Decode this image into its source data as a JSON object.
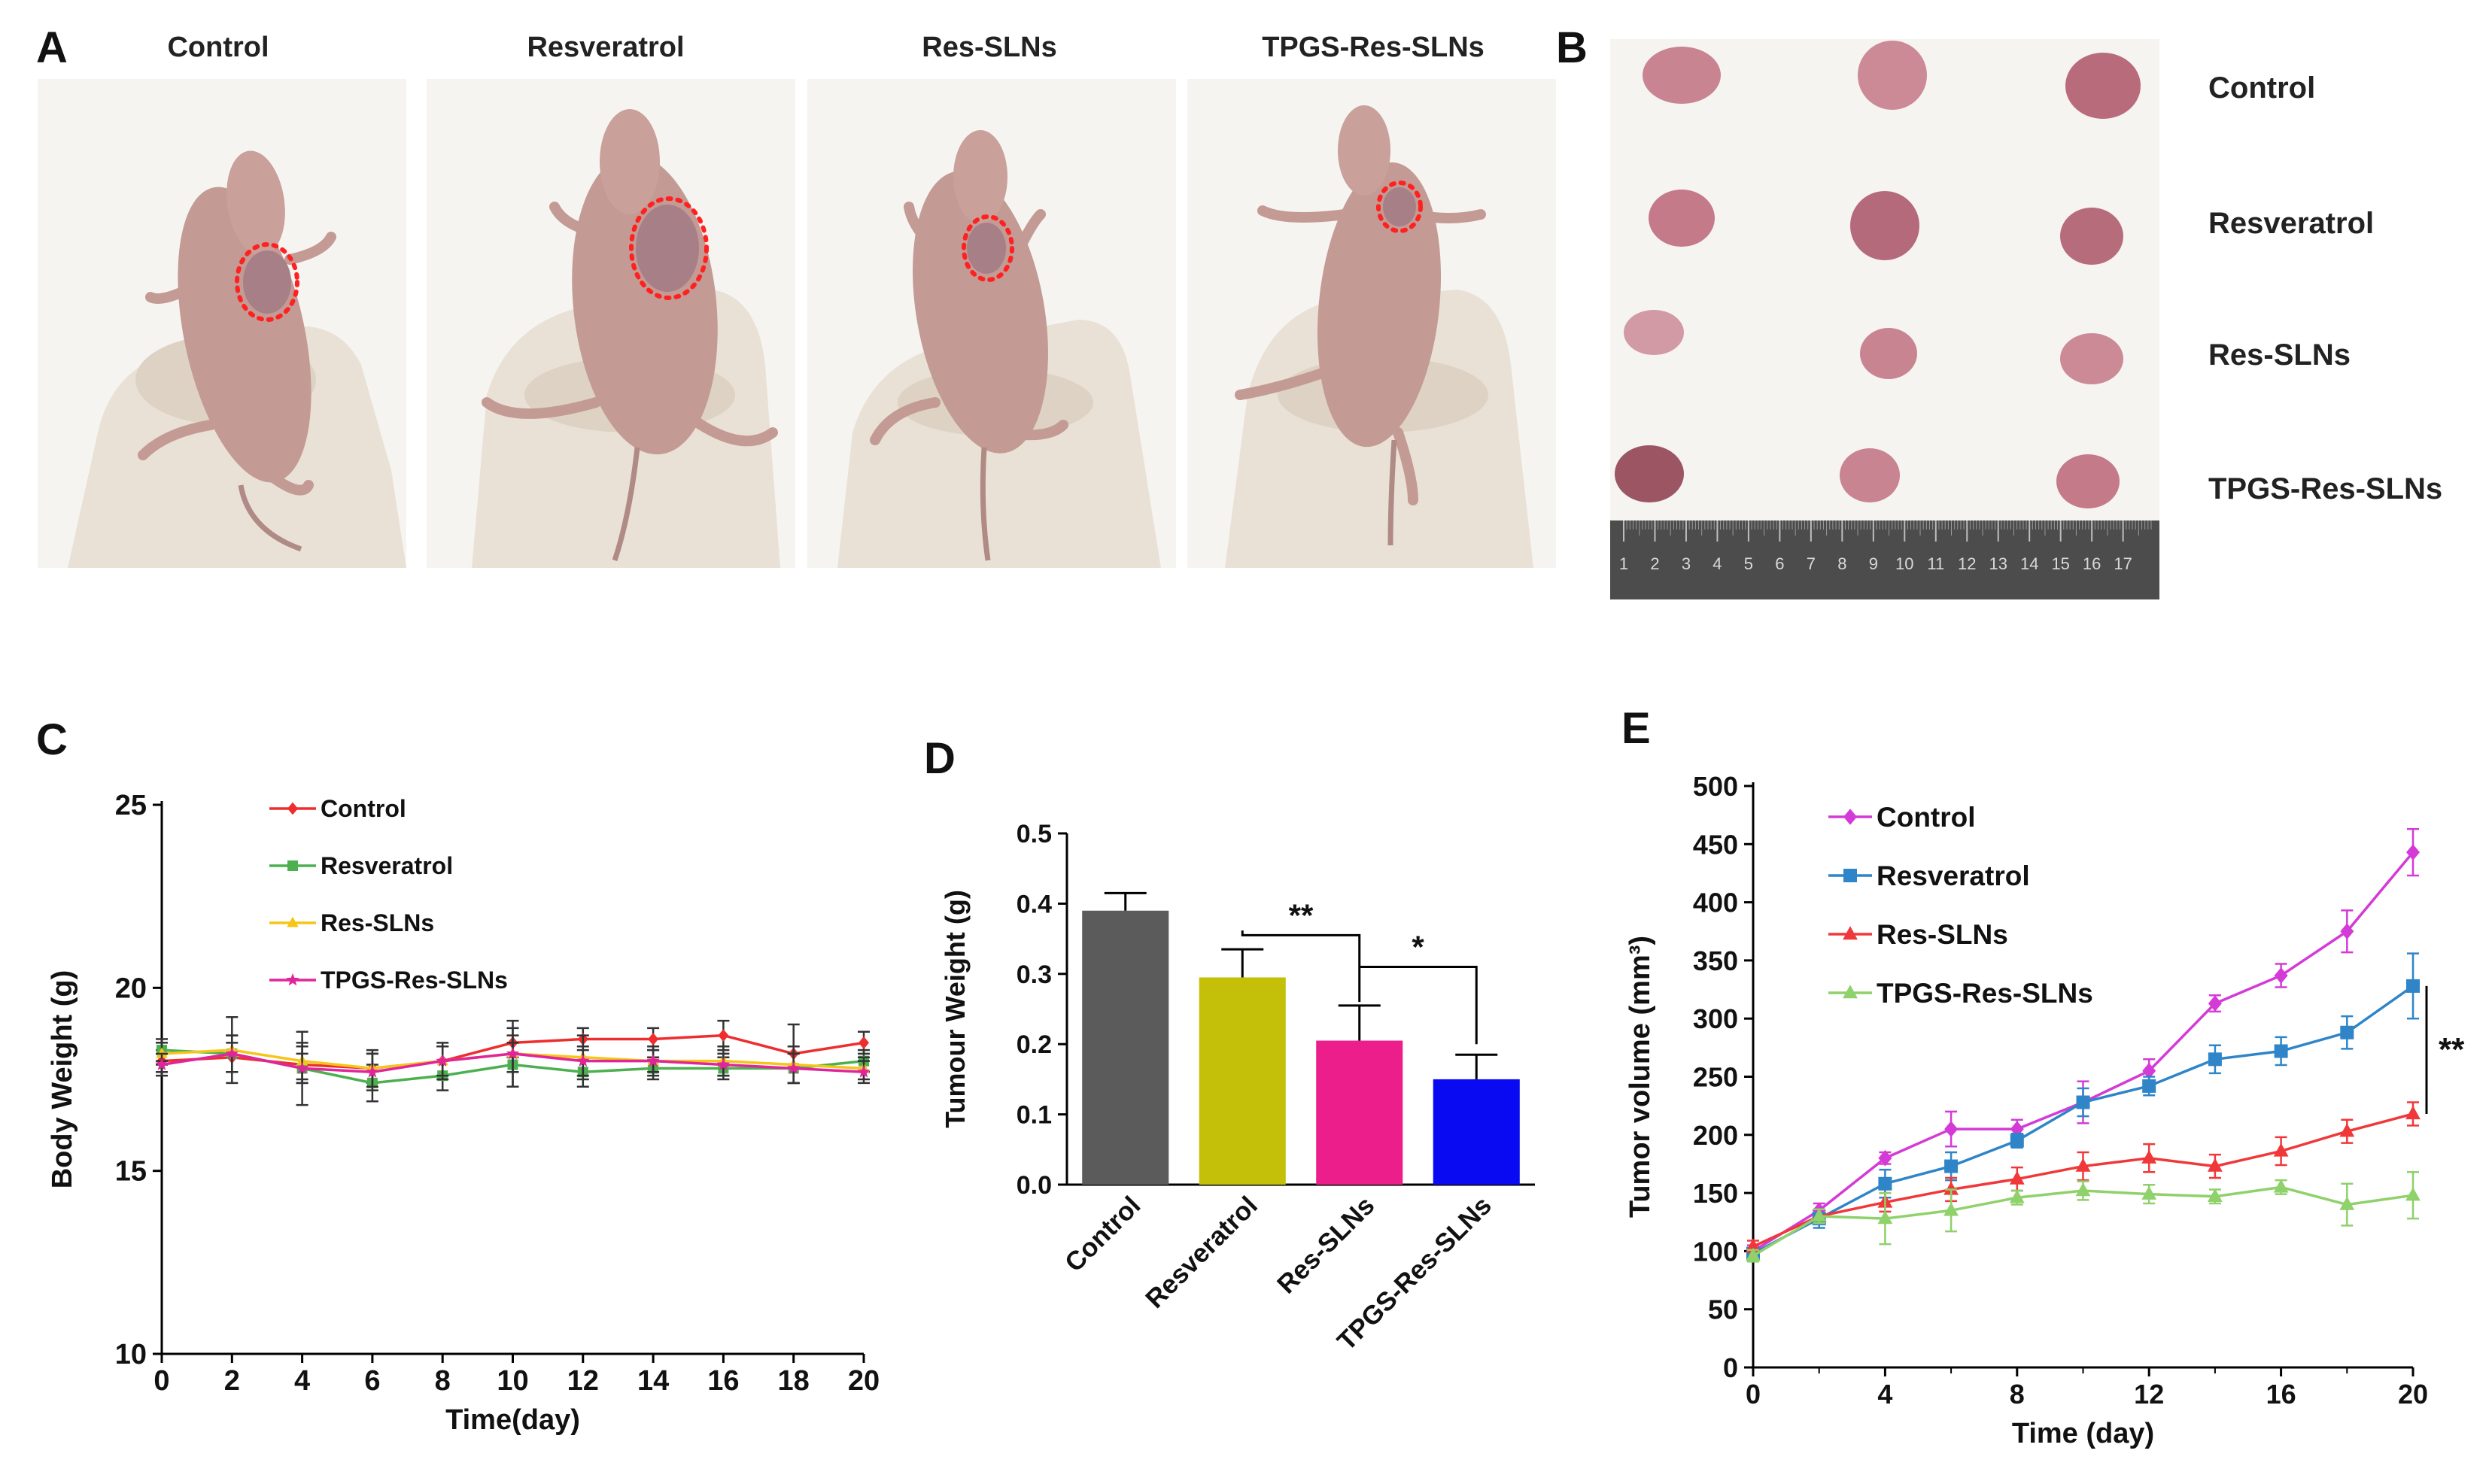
{
  "panels": {
    "a": "A",
    "b": "B",
    "c": "C",
    "d": "D",
    "e": "E"
  },
  "photos_a": {
    "titles": [
      "Control",
      "Resveratrol",
      "Res-SLNs",
      "TPGS-Res-SLNs"
    ]
  },
  "photo_b": {
    "row_labels": [
      "Control",
      "Resveratrol",
      "Res-SLNs",
      "TPGS-Res-SLNs"
    ],
    "ruler_numbers": [
      "1",
      "2",
      "3",
      "4",
      "5",
      "6",
      "7",
      "8",
      "9",
      "10",
      "11",
      "12",
      "13",
      "14",
      "15",
      "16",
      "17"
    ]
  },
  "colors": {
    "mouse": "#c39a94",
    "glove": "#e9e1d5",
    "tumor": "#c98491",
    "tumor_dark": "#9c5563",
    "circle": "#ff2020",
    "ruler": "#4c4c4c",
    "photo_bg": "#f6f4f1"
  },
  "chart_data": [
    {
      "id": "C",
      "type": "line",
      "title": "",
      "xlabel": "Time(day)",
      "ylabel": "Body Weight (g)",
      "xlim": [
        0,
        20
      ],
      "ylim": [
        10,
        25
      ],
      "xticks": [
        0,
        2,
        4,
        6,
        8,
        10,
        12,
        14,
        16,
        18,
        20
      ],
      "yticks": [
        10,
        15,
        20,
        25
      ],
      "legend_position": "top-left",
      "series": [
        {
          "name": "Control",
          "color": "#ee2d2d",
          "marker": "diamond",
          "x": [
            0,
            2,
            4,
            6,
            8,
            10,
            12,
            14,
            16,
            18,
            20
          ],
          "values": [
            18.0,
            18.1,
            17.9,
            17.8,
            18.0,
            18.5,
            18.6,
            18.6,
            18.7,
            18.2,
            18.5
          ],
          "errors": [
            0.3,
            0.4,
            0.5,
            0.4,
            0.4,
            0.4,
            0.3,
            0.3,
            0.4,
            0.8,
            0.3
          ]
        },
        {
          "name": "Resveratrol",
          "color": "#4caf50",
          "marker": "square",
          "x": [
            0,
            2,
            4,
            6,
            8,
            10,
            12,
            14,
            16,
            18,
            20
          ],
          "values": [
            18.3,
            18.2,
            17.8,
            17.4,
            17.6,
            17.9,
            17.7,
            17.8,
            17.8,
            17.8,
            18.0
          ],
          "errors": [
            0.3,
            0.5,
            0.4,
            0.5,
            0.4,
            0.6,
            0.4,
            0.3,
            0.3,
            0.4,
            0.3
          ]
        },
        {
          "name": "Res-SLNs",
          "color": "#f5c518",
          "marker": "triangle",
          "x": [
            0,
            2,
            4,
            6,
            8,
            10,
            12,
            14,
            16,
            18,
            20
          ],
          "values": [
            18.2,
            18.3,
            18.0,
            17.8,
            18.0,
            18.2,
            18.1,
            18.0,
            18.0,
            17.9,
            17.8
          ],
          "errors": [
            0.3,
            0.9,
            0.5,
            0.5,
            0.4,
            0.9,
            0.6,
            0.4,
            0.4,
            0.5,
            0.3
          ]
        },
        {
          "name": "TPGS-Res-SLNs",
          "color": "#e0259b",
          "marker": "star",
          "x": [
            0,
            2,
            4,
            6,
            8,
            10,
            12,
            14,
            16,
            18,
            20
          ],
          "values": [
            17.9,
            18.2,
            17.8,
            17.7,
            18.0,
            18.2,
            18.0,
            18.0,
            17.9,
            17.8,
            17.7
          ],
          "errors": [
            0.3,
            0.5,
            1.0,
            0.5,
            0.5,
            0.5,
            0.4,
            0.3,
            0.3,
            0.4,
            0.3
          ]
        }
      ]
    },
    {
      "id": "D",
      "type": "bar",
      "title": "",
      "xlabel": "",
      "ylabel": "Tumour Weight (g)",
      "ylim": [
        0,
        0.5
      ],
      "yticks": [
        "0.0",
        "0.1",
        "0.2",
        "0.3",
        "0.4",
        "0.5"
      ],
      "categories": [
        "Control",
        "Resveratrol",
        "Res-SLNs",
        "TPGS-Res-SLNs"
      ],
      "values": [
        0.39,
        0.295,
        0.205,
        0.15
      ],
      "errors": [
        0.025,
        0.04,
        0.05,
        0.035
      ],
      "colors": [
        "#5b5b5b",
        "#c4c00a",
        "#ec1e8c",
        "#0a0af2"
      ],
      "annotations": [
        {
          "from": 1,
          "to": 2,
          "label": "**"
        },
        {
          "from": 2,
          "to": 3,
          "label": "*"
        }
      ]
    },
    {
      "id": "E",
      "type": "line",
      "title": "",
      "xlabel": "Time (day)",
      "ylabel": "Tumor volume (mm³)",
      "xlim": [
        0,
        20
      ],
      "ylim": [
        0,
        500
      ],
      "xticks": [
        0,
        4,
        8,
        12,
        16,
        20
      ],
      "yticks": [
        0,
        50,
        100,
        150,
        200,
        250,
        300,
        350,
        400,
        450,
        500
      ],
      "legend_position": "top-left",
      "significance": "**",
      "series": [
        {
          "name": "Control",
          "color": "#d43bd6",
          "marker": "diamond",
          "x": [
            0,
            2,
            4,
            6,
            8,
            10,
            12,
            14,
            16,
            18,
            20
          ],
          "values": [
            100,
            135,
            180,
            205,
            205,
            228,
            255,
            313,
            337,
            375,
            443
          ],
          "errors": [
            5,
            6,
            5,
            15,
            8,
            18,
            10,
            7,
            10,
            18,
            20
          ]
        },
        {
          "name": "Resveratrol",
          "color": "#2f85c8",
          "marker": "square",
          "x": [
            0,
            2,
            4,
            6,
            8,
            10,
            12,
            14,
            16,
            18,
            20
          ],
          "values": [
            98,
            128,
            158,
            173,
            195,
            228,
            242,
            265,
            272,
            288,
            328
          ],
          "errors": [
            5,
            8,
            12,
            12,
            6,
            12,
            8,
            12,
            12,
            14,
            28
          ]
        },
        {
          "name": "Res-SLNs",
          "color": "#f0383a",
          "marker": "triangle",
          "x": [
            0,
            2,
            4,
            6,
            8,
            10,
            12,
            14,
            16,
            18,
            20
          ],
          "values": [
            104,
            130,
            142,
            153,
            162,
            173,
            180,
            173,
            186,
            203,
            218
          ],
          "errors": [
            5,
            6,
            8,
            10,
            10,
            12,
            12,
            10,
            12,
            10,
            10
          ]
        },
        {
          "name": "TPGS-Res-SLNs",
          "color": "#8fd16a",
          "marker": "triangle",
          "x": [
            0,
            2,
            4,
            6,
            8,
            10,
            12,
            14,
            16,
            18,
            20
          ],
          "values": [
            96,
            130,
            128,
            135,
            146,
            152,
            149,
            147,
            155,
            140,
            148
          ],
          "errors": [
            5,
            6,
            22,
            18,
            6,
            8,
            8,
            6,
            6,
            18,
            20
          ]
        }
      ]
    }
  ]
}
